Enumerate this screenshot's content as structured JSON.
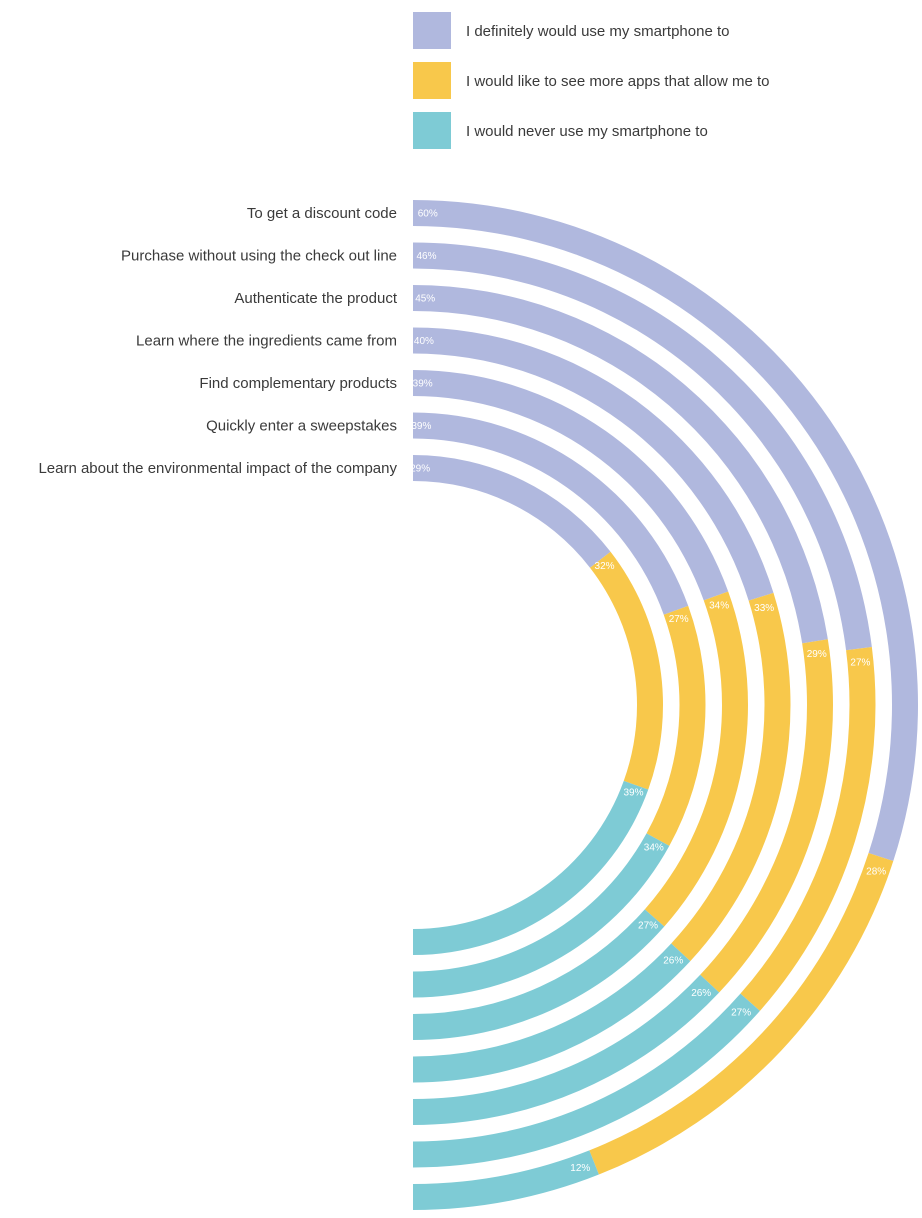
{
  "chart_data": {
    "type": "radial-bar",
    "colors": [
      "#b0b8de",
      "#f8c84b",
      "#7ecbd5"
    ],
    "series": [
      {
        "name": "I definitely would use my smartphone to",
        "color": "#b0b8de"
      },
      {
        "name": "I would like to see more apps that allow me to",
        "color": "#f8c84b"
      },
      {
        "name": "I would never use my smartphone to",
        "color": "#7ecbd5"
      }
    ],
    "categories": [
      "To get a discount code",
      "Purchase without using the check out line",
      "Authenticate the product",
      "Learn where the ingredients came from",
      "Find complementary products",
      "Quickly enter a sweepstakes",
      "Learn about the environmental impact of the company"
    ],
    "values": [
      [
        60,
        28,
        12
      ],
      [
        46,
        27,
        27
      ],
      [
        45,
        29,
        26
      ],
      [
        40,
        33,
        26
      ],
      [
        39,
        34,
        27
      ],
      [
        39,
        27,
        34
      ],
      [
        29,
        32,
        39
      ]
    ],
    "labels": [
      [
        "60%",
        "28%",
        "12%"
      ],
      [
        "46%",
        "27%",
        "27%"
      ],
      [
        "45%",
        "29%",
        "26%"
      ],
      [
        "40%",
        "33%",
        "26%"
      ],
      [
        "39%",
        "34%",
        "27%"
      ],
      [
        "39%",
        "27%",
        "34%"
      ],
      [
        "29%",
        "32%",
        "39%"
      ]
    ]
  }
}
